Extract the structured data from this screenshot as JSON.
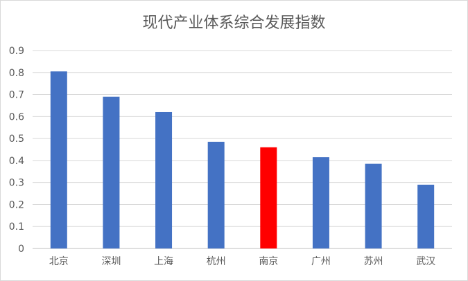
{
  "chart_data": {
    "type": "bar",
    "title": "现代产业体系综合发展指数",
    "xlabel": "",
    "ylabel": "",
    "categories": [
      "北京",
      "深圳",
      "上海",
      "杭州",
      "南京",
      "广州",
      "苏州",
      "武汉"
    ],
    "values": [
      0.805,
      0.69,
      0.62,
      0.485,
      0.46,
      0.415,
      0.385,
      0.29
    ],
    "ylim": [
      0,
      0.9
    ],
    "yticks": [
      "0",
      "0.1",
      "0.2",
      "0.3",
      "0.4",
      "0.5",
      "0.6",
      "0.7",
      "0.8",
      "0.9"
    ],
    "grid": true,
    "legend": "none",
    "colors": {
      "default": "#4472c4",
      "highlight": "#ff0000",
      "highlight_category": "南京",
      "grid": "#d9d9d9",
      "axis": "#bfbfbf",
      "text": "#595959"
    }
  }
}
